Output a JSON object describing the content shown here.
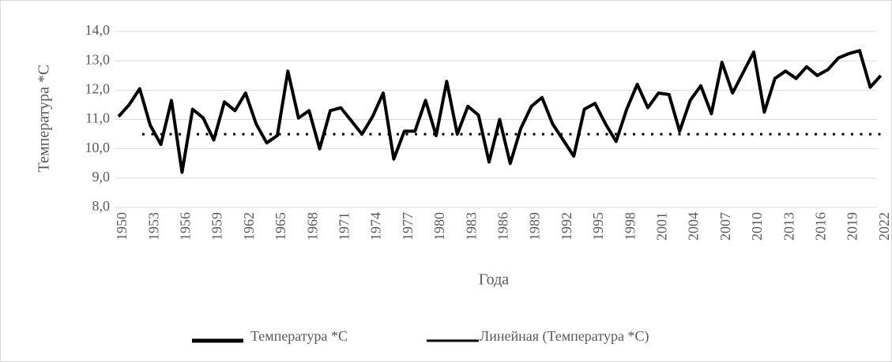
{
  "chart_data": {
    "type": "line",
    "x_label": "Года",
    "y_label": "Температура *С",
    "categories": [
      "1950",
      null,
      null,
      "1953",
      null,
      null,
      "1956",
      null,
      null,
      "1959",
      null,
      null,
      "1962",
      null,
      null,
      "1965",
      null,
      null,
      "1968",
      null,
      null,
      "1971",
      null,
      null,
      "1974",
      null,
      null,
      "1977",
      null,
      null,
      "1980",
      null,
      null,
      "1983",
      null,
      null,
      "1986",
      null,
      null,
      "1989",
      null,
      null,
      "1992",
      null,
      null,
      "1995",
      null,
      null,
      "1998",
      null,
      null,
      "2001",
      null,
      null,
      "2004",
      null,
      null,
      "2007",
      null,
      null,
      "2010",
      null,
      null,
      "2013",
      null,
      null,
      "2016",
      null,
      null,
      "2019",
      null,
      null,
      "2022"
    ],
    "series": [
      {
        "name": "Температура *С",
        "color": "#000000",
        "values": [
          11.1,
          11.5,
          12.05,
          10.8,
          10.15,
          11.65,
          9.2,
          11.35,
          11.05,
          10.3,
          11.6,
          11.3,
          11.9,
          10.85,
          10.2,
          10.45,
          12.65,
          11.05,
          11.3,
          10.0,
          11.3,
          11.4,
          10.95,
          10.5,
          11.1,
          11.9,
          9.65,
          10.6,
          10.6,
          11.65,
          10.45,
          12.3,
          10.5,
          11.45,
          11.15,
          9.55,
          11.0,
          9.5,
          10.7,
          11.45,
          11.75,
          10.85,
          10.3,
          9.75,
          11.35,
          11.55,
          10.85,
          10.25,
          11.35,
          12.2,
          11.4,
          11.9,
          11.85,
          10.6,
          11.65,
          12.15,
          11.2,
          12.95,
          11.9,
          12.6,
          13.3,
          11.25,
          12.4,
          12.65,
          12.4,
          12.8,
          12.5,
          12.7,
          13.1,
          13.25,
          13.35,
          12.1,
          12.5
        ]
      }
    ],
    "trend": {
      "name": "Линейная (Температура *С)",
      "color": "#000000",
      "value": 10.5
    },
    "ylim": [
      8,
      14
    ],
    "yticks": [
      {
        "value": 8,
        "label": "8,0"
      },
      {
        "value": 9,
        "label": "9,0"
      },
      {
        "value": 10,
        "label": "10,0"
      },
      {
        "value": 11,
        "label": "11,0"
      },
      {
        "value": 12,
        "label": "12,0"
      },
      {
        "value": 13,
        "label": "13,0"
      },
      {
        "value": 14,
        "label": "14,0"
      }
    ],
    "grid": true,
    "legend": "bottom"
  }
}
